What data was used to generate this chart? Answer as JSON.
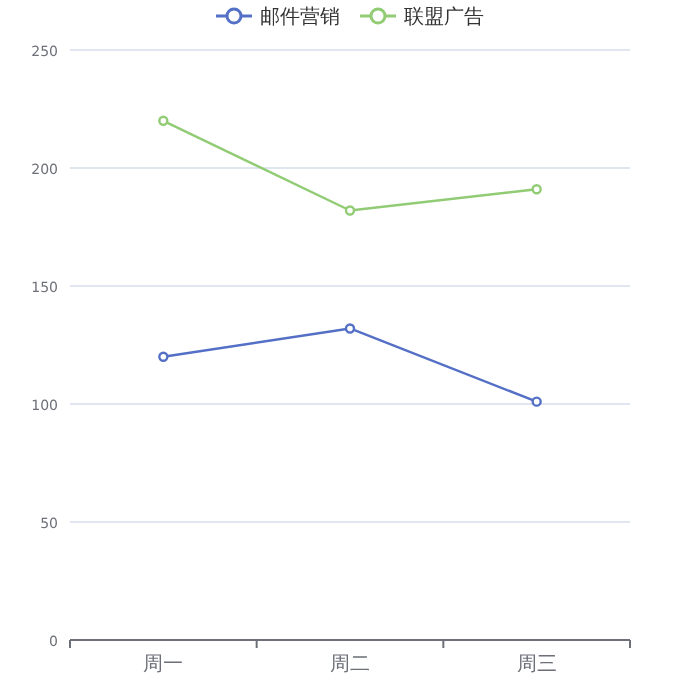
{
  "chart_data": {
    "type": "line",
    "categories": [
      "周一",
      "周二",
      "周三"
    ],
    "series": [
      {
        "name": "邮件营销",
        "color": "#5470c6",
        "values": [
          120,
          132,
          101
        ]
      },
      {
        "name": "联盟广告",
        "color": "#91cc75",
        "values": [
          220,
          182,
          191
        ]
      }
    ],
    "ylim": [
      0,
      250
    ],
    "yticks": [
      0,
      50,
      100,
      150,
      200,
      250
    ],
    "grid": "y",
    "legend": "top",
    "marker": "circle",
    "line_style": "solid"
  }
}
